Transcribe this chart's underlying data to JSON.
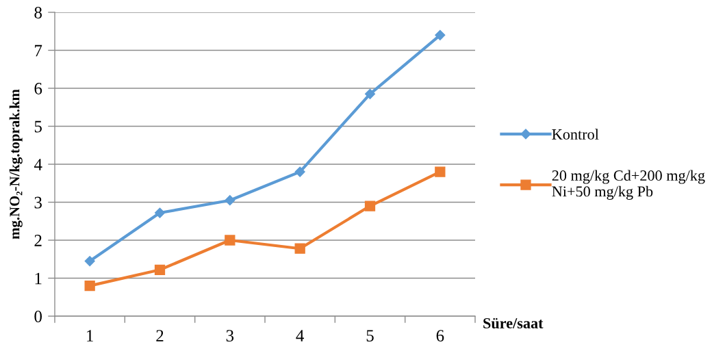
{
  "chart_data": {
    "type": "line",
    "xlabel": "Süre/saat",
    "ylabel": "mg.NO₂-N/kg.toprak.km",
    "categories": [
      "1",
      "2",
      "3",
      "4",
      "5",
      "6"
    ],
    "series": [
      {
        "name": "Kontrol",
        "color": "#5b9bd5",
        "marker": "diamond",
        "values": [
          1.45,
          2.72,
          3.05,
          3.8,
          5.85,
          7.4
        ]
      },
      {
        "name": "20 mg/kg Cd+200 mg/kg\nNi+50 mg/kg Pb",
        "color": "#ed7d31",
        "marker": "square",
        "values": [
          0.8,
          1.22,
          2.0,
          1.78,
          2.9,
          3.8
        ]
      }
    ],
    "ylim": [
      0,
      8
    ],
    "yticks": [
      0,
      1,
      2,
      3,
      4,
      5,
      6,
      7,
      8
    ],
    "grid": "y",
    "legend": "right",
    "line_style": "solid"
  }
}
